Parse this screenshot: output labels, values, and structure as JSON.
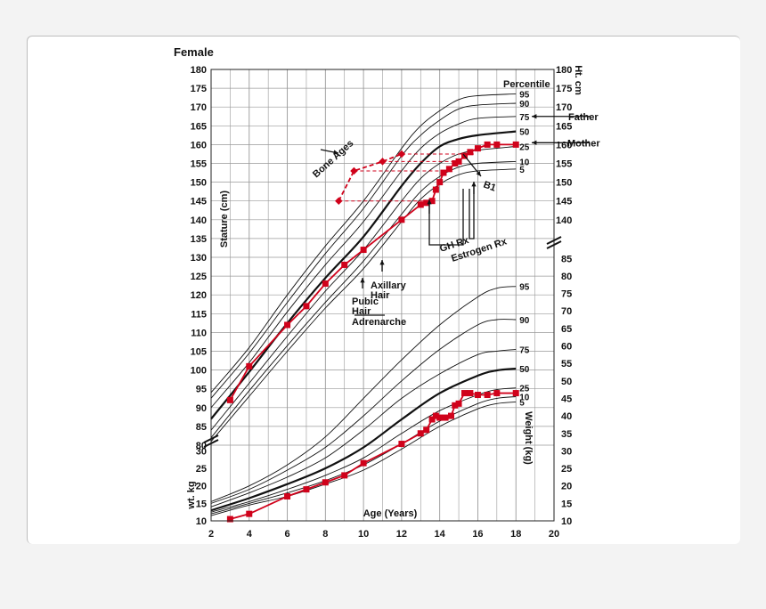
{
  "chart_data": {
    "type": "line",
    "title": "Female",
    "xlabel": "Age (Years)",
    "stature_label": "Stature (cm)",
    "weight_label": "Weight (kg)",
    "right_ht_label": "Ht. cm",
    "left_wt_label": "wt. kg",
    "percentile_label": "Percentile",
    "x_ticks": [
      2,
      4,
      6,
      8,
      10,
      12,
      14,
      16,
      18,
      20
    ],
    "stature_ticks_left": [
      80,
      85,
      90,
      95,
      100,
      105,
      110,
      115,
      120,
      125,
      130,
      135,
      140,
      145,
      150,
      155,
      160,
      165,
      170,
      175,
      180
    ],
    "stature_ticks_right": [
      140,
      145,
      150,
      155,
      160,
      165,
      170,
      175,
      180
    ],
    "weight_ticks_left": [
      10,
      15,
      20,
      25,
      30
    ],
    "weight_ticks_right": [
      10,
      15,
      20,
      25,
      30,
      35,
      40,
      45,
      50,
      55,
      60,
      65,
      70,
      75,
      80,
      85
    ],
    "height_percentiles": [
      {
        "name": "95",
        "values": [
          [
            2,
            94
          ],
          [
            4,
            106
          ],
          [
            6,
            120
          ],
          [
            8,
            133
          ],
          [
            10,
            145
          ],
          [
            12,
            159
          ],
          [
            13,
            165
          ],
          [
            14,
            169
          ],
          [
            15,
            172
          ],
          [
            16,
            173
          ],
          [
            18,
            173.5
          ]
        ]
      },
      {
        "name": "90",
        "values": [
          [
            2,
            92.5
          ],
          [
            4,
            104.5
          ],
          [
            6,
            118
          ],
          [
            8,
            131
          ],
          [
            10,
            143
          ],
          [
            12,
            157
          ],
          [
            13,
            162.5
          ],
          [
            14,
            166.5
          ],
          [
            15,
            169.5
          ],
          [
            16,
            170.5
          ],
          [
            18,
            171
          ]
        ]
      },
      {
        "name": "75",
        "values": [
          [
            2,
            90
          ],
          [
            4,
            102
          ],
          [
            6,
            115.5
          ],
          [
            8,
            128
          ],
          [
            10,
            139.5
          ],
          [
            12,
            153
          ],
          [
            13,
            159
          ],
          [
            14,
            163
          ],
          [
            15,
            165.5
          ],
          [
            16,
            167
          ],
          [
            18,
            167.5
          ]
        ]
      },
      {
        "name": "50",
        "values": [
          [
            2,
            87
          ],
          [
            4,
            99.5
          ],
          [
            6,
            112.5
          ],
          [
            8,
            124.5
          ],
          [
            10,
            135.5
          ],
          [
            12,
            149
          ],
          [
            13,
            155
          ],
          [
            14,
            159.5
          ],
          [
            15,
            161.5
          ],
          [
            16,
            162.5
          ],
          [
            18,
            163.5
          ]
        ]
      },
      {
        "name": "25",
        "values": [
          [
            2,
            84
          ],
          [
            4,
            96.5
          ],
          [
            6,
            109
          ],
          [
            8,
            121
          ],
          [
            10,
            132
          ],
          [
            12,
            145
          ],
          [
            13,
            151
          ],
          [
            14,
            155
          ],
          [
            15,
            157.5
          ],
          [
            16,
            158.5
          ],
          [
            18,
            159.5
          ]
        ]
      },
      {
        "name": "10",
        "values": [
          [
            2,
            82
          ],
          [
            4,
            94.5
          ],
          [
            6,
            106.5
          ],
          [
            8,
            118
          ],
          [
            10,
            129
          ],
          [
            12,
            141.5
          ],
          [
            13,
            147.5
          ],
          [
            14,
            151.5
          ],
          [
            15,
            154
          ],
          [
            16,
            155
          ],
          [
            18,
            155.5
          ]
        ]
      },
      {
        "name": "5",
        "values": [
          [
            2,
            81
          ],
          [
            4,
            93
          ],
          [
            6,
            105
          ],
          [
            8,
            116.5
          ],
          [
            10,
            127
          ],
          [
            12,
            139.5
          ],
          [
            13,
            145.5
          ],
          [
            14,
            149.5
          ],
          [
            15,
            152
          ],
          [
            16,
            153
          ],
          [
            18,
            153.5
          ]
        ]
      }
    ],
    "weight_percentiles": [
      {
        "name": "95",
        "values": [
          [
            2,
            15.5
          ],
          [
            4,
            20
          ],
          [
            6,
            26
          ],
          [
            8,
            34
          ],
          [
            10,
            45
          ],
          [
            12,
            56
          ],
          [
            14,
            66
          ],
          [
            16,
            74
          ],
          [
            17,
            76.5
          ],
          [
            18,
            77
          ]
        ]
      },
      {
        "name": "90",
        "values": [
          [
            2,
            15
          ],
          [
            4,
            19
          ],
          [
            6,
            24.5
          ],
          [
            8,
            31
          ],
          [
            10,
            40
          ],
          [
            12,
            50
          ],
          [
            14,
            59
          ],
          [
            16,
            66
          ],
          [
            17,
            67.5
          ],
          [
            18,
            67.5
          ]
        ]
      },
      {
        "name": "75",
        "values": [
          [
            2,
            14
          ],
          [
            4,
            18
          ],
          [
            6,
            22.5
          ],
          [
            8,
            28
          ],
          [
            10,
            36
          ],
          [
            12,
            45
          ],
          [
            14,
            52
          ],
          [
            16,
            57.5
          ],
          [
            17,
            58.5
          ],
          [
            18,
            59
          ]
        ]
      },
      {
        "name": "50",
        "values": [
          [
            2,
            13
          ],
          [
            4,
            16.5
          ],
          [
            6,
            20.5
          ],
          [
            8,
            25
          ],
          [
            10,
            31
          ],
          [
            12,
            39
          ],
          [
            14,
            46.5
          ],
          [
            16,
            51.5
          ],
          [
            17,
            53
          ],
          [
            18,
            53.5
          ]
        ]
      },
      {
        "name": "25",
        "values": [
          [
            2,
            12.5
          ],
          [
            4,
            15.5
          ],
          [
            6,
            19
          ],
          [
            8,
            23
          ],
          [
            10,
            28
          ],
          [
            12,
            35
          ],
          [
            14,
            41.5
          ],
          [
            16,
            46
          ],
          [
            17,
            47.5
          ],
          [
            18,
            48
          ]
        ]
      },
      {
        "name": "10",
        "values": [
          [
            2,
            12
          ],
          [
            4,
            15
          ],
          [
            6,
            18
          ],
          [
            8,
            21.5
          ],
          [
            10,
            26
          ],
          [
            12,
            32
          ],
          [
            14,
            38.5
          ],
          [
            16,
            43.5
          ],
          [
            17,
            45
          ],
          [
            18,
            45.5
          ]
        ]
      },
      {
        "name": "5",
        "values": [
          [
            2,
            11.5
          ],
          [
            4,
            14.5
          ],
          [
            6,
            17
          ],
          [
            8,
            20.5
          ],
          [
            10,
            24.5
          ],
          [
            12,
            30.5
          ],
          [
            14,
            37
          ],
          [
            16,
            42
          ],
          [
            17,
            43.5
          ],
          [
            18,
            44
          ]
        ]
      }
    ],
    "patient_height": [
      [
        3,
        92
      ],
      [
        4,
        101
      ],
      [
        6,
        112
      ],
      [
        7,
        117
      ],
      [
        8,
        123
      ],
      [
        9,
        128
      ],
      [
        10,
        132
      ],
      [
        12,
        140
      ],
      [
        13,
        144
      ],
      [
        13.3,
        144.5
      ],
      [
        13.6,
        145
      ],
      [
        13.8,
        148
      ],
      [
        14,
        150
      ],
      [
        14.2,
        152.5
      ],
      [
        14.5,
        153.5
      ],
      [
        14.8,
        155
      ],
      [
        15,
        155.5
      ],
      [
        15.3,
        157
      ],
      [
        15.6,
        158
      ],
      [
        16,
        159
      ],
      [
        16.5,
        160
      ],
      [
        17,
        160
      ],
      [
        18,
        160
      ]
    ],
    "patient_weight": [
      [
        3,
        10.5
      ],
      [
        4,
        12
      ],
      [
        6,
        17
      ],
      [
        7,
        19
      ],
      [
        8,
        21
      ],
      [
        9,
        23
      ],
      [
        10,
        26.5
      ],
      [
        12,
        32
      ],
      [
        13,
        35
      ],
      [
        13.3,
        36
      ],
      [
        13.6,
        39
      ],
      [
        13.8,
        40
      ],
      [
        14,
        39.5
      ],
      [
        14.3,
        39.5
      ],
      [
        14.6,
        40
      ],
      [
        14.8,
        43
      ],
      [
        15,
        43.5
      ],
      [
        15.3,
        46.5
      ],
      [
        15.6,
        46.5
      ],
      [
        16,
        46
      ],
      [
        16.5,
        46
      ],
      [
        17,
        46.5
      ],
      [
        18,
        46.5
      ]
    ],
    "bone_age": [
      [
        8.7,
        145
      ],
      [
        9.5,
        153
      ],
      [
        11,
        155.5
      ],
      [
        12,
        157.5
      ]
    ],
    "annotations": {
      "bone_ages": "Bone Ages",
      "father": "Father",
      "mother": "Mother",
      "b1": "B1",
      "gh": "GH Rx",
      "estrogen": "Estrogen Rx",
      "axillary": "Axillary\nHair",
      "pubic": "Pubic\nHair",
      "adrenarche": "Adrenarche"
    }
  }
}
